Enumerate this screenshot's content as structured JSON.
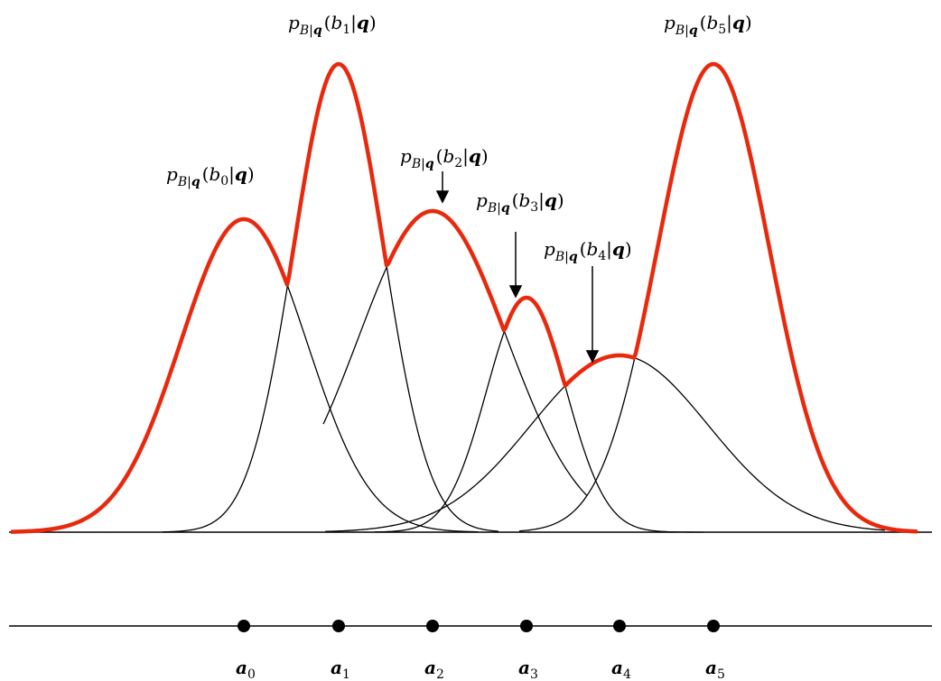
{
  "colors": {
    "envelope": "#e8290d",
    "components": "#000000",
    "background": "#ffffff"
  },
  "density_labels": [
    {
      "fn": "p",
      "sub_var": "B",
      "sub_cond": "q",
      "arg": "b",
      "idx": "0",
      "cond": "q"
    },
    {
      "fn": "p",
      "sub_var": "B",
      "sub_cond": "q",
      "arg": "b",
      "idx": "1",
      "cond": "q"
    },
    {
      "fn": "p",
      "sub_var": "B",
      "sub_cond": "q",
      "arg": "b",
      "idx": "2",
      "cond": "q"
    },
    {
      "fn": "p",
      "sub_var": "B",
      "sub_cond": "q",
      "arg": "b",
      "idx": "3",
      "cond": "q"
    },
    {
      "fn": "p",
      "sub_var": "B",
      "sub_cond": "q",
      "arg": "b",
      "idx": "4",
      "cond": "q"
    },
    {
      "fn": "p",
      "sub_var": "B",
      "sub_cond": "q",
      "arg": "b",
      "idx": "5",
      "cond": "q"
    }
  ],
  "points": [
    {
      "sym": "a",
      "idx": "0"
    },
    {
      "sym": "a",
      "idx": "1"
    },
    {
      "sym": "a",
      "idx": "2"
    },
    {
      "sym": "a",
      "idx": "3"
    },
    {
      "sym": "a",
      "idx": "4"
    },
    {
      "sym": "a",
      "idx": "5"
    }
  ]
}
